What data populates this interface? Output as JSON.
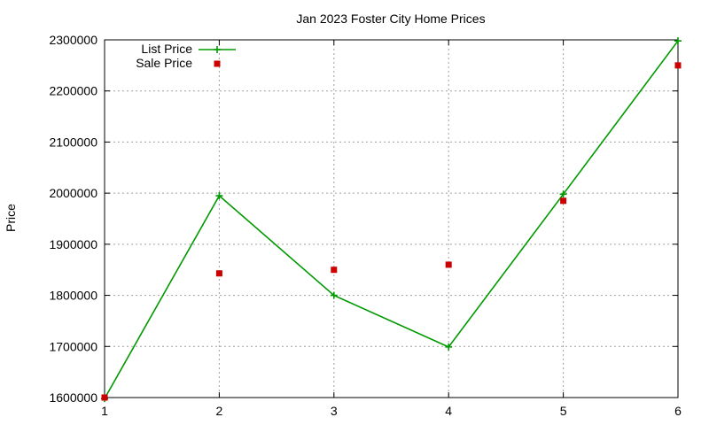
{
  "chart_data": {
    "type": "line",
    "title": "Jan 2023 Foster City Home Prices",
    "xlabel": "",
    "ylabel": "Price",
    "x": [
      1,
      2,
      3,
      4,
      5,
      6
    ],
    "xlim": [
      1,
      6
    ],
    "ylim": [
      1600000,
      2300000
    ],
    "x_ticks": [
      "1",
      "2",
      "3",
      "4",
      "5",
      "6"
    ],
    "y_ticks": [
      "1600000",
      "1700000",
      "1800000",
      "1900000",
      "2000000",
      "2100000",
      "2200000",
      "2300000"
    ],
    "grid": true,
    "legend_position": "top-left",
    "series": [
      {
        "name": "List Price",
        "style": "linespoints",
        "marker": "plus",
        "color": "#009900",
        "values": [
          1598000,
          1995000,
          1800000,
          1699000,
          1998000,
          2298000
        ]
      },
      {
        "name": "Sale Price",
        "style": "points",
        "marker": "square",
        "color": "#cc0000",
        "values": [
          1600000,
          1843000,
          1850000,
          1860000,
          1985000,
          2250000
        ]
      }
    ]
  },
  "legend": {
    "items": [
      "List Price",
      "Sale Price"
    ]
  }
}
